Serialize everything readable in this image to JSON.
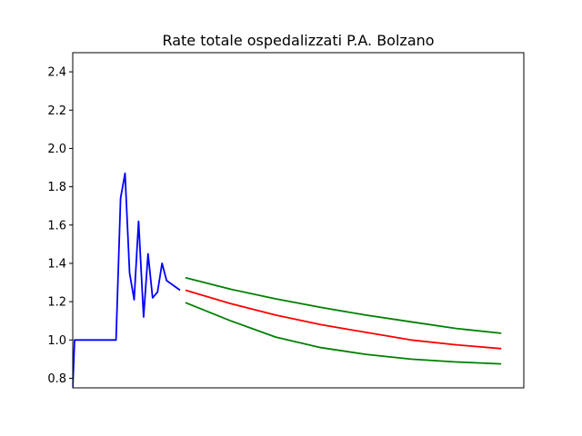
{
  "chart_data": {
    "type": "line",
    "title": "Rate totale ospedalizzati P.A. Bolzano",
    "xlabel": "",
    "ylabel": "",
    "xlim": [
      0,
      100
    ],
    "ylim": [
      0.75,
      2.5
    ],
    "yticks": [
      "0.8",
      "1.0",
      "1.2",
      "1.4",
      "1.6",
      "1.8",
      "2.0",
      "2.2",
      "2.4"
    ],
    "grid": false,
    "series": [
      {
        "color": "#0000ff",
        "x": [
          0,
          0.4,
          9.6,
          10.6,
          11.6,
          12.6,
          13.6,
          14.6,
          15.7,
          16.7,
          17.7,
          18.8,
          19.8,
          20.8,
          23.8
        ],
        "y": [
          0.75,
          1.0,
          1.0,
          1.74,
          1.87,
          1.35,
          1.21,
          1.62,
          1.12,
          1.45,
          1.22,
          1.25,
          1.4,
          1.31,
          1.26
        ]
      },
      {
        "color": "#ff0000",
        "x": [
          25,
          35,
          45,
          55,
          65,
          75,
          85,
          95
        ],
        "y": [
          1.26,
          1.19,
          1.13,
          1.08,
          1.04,
          1.0,
          0.975,
          0.955
        ]
      },
      {
        "color": "#008000",
        "x": [
          25,
          35,
          45,
          55,
          65,
          75,
          85,
          95
        ],
        "y": [
          1.325,
          1.265,
          1.215,
          1.17,
          1.13,
          1.095,
          1.06,
          1.035
        ]
      },
      {
        "color": "#008000",
        "x": [
          25,
          35,
          45,
          55,
          65,
          75,
          85,
          95
        ],
        "y": [
          1.195,
          1.1,
          1.015,
          0.96,
          0.925,
          0.9,
          0.885,
          0.875
        ]
      }
    ]
  }
}
